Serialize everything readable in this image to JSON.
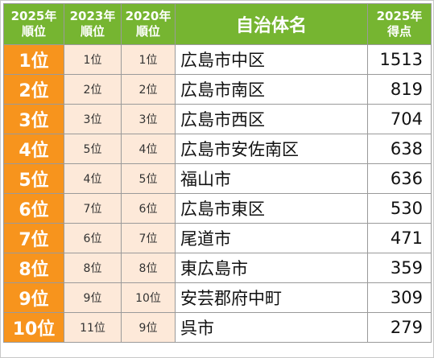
{
  "headers": {
    "rank_2025": [
      "2025年",
      "順位"
    ],
    "rank_2023": [
      "2023年",
      "順位"
    ],
    "rank_2020": [
      "2020年",
      "順位"
    ],
    "name": "自治体名",
    "score_2025": [
      "2025年",
      "得点"
    ]
  },
  "colors": {
    "header_green": "#76b531",
    "rank_orange": "#f7941d",
    "past_rank_peach": "#fde9d9"
  },
  "rows": [
    {
      "rank_2025": "1位",
      "rank_2023": "1位",
      "rank_2020": "1位",
      "name": "広島市中区",
      "score": "1513"
    },
    {
      "rank_2025": "2位",
      "rank_2023": "2位",
      "rank_2020": "2位",
      "name": "広島市南区",
      "score": "819"
    },
    {
      "rank_2025": "3位",
      "rank_2023": "3位",
      "rank_2020": "3位",
      "name": "広島市西区",
      "score": "704"
    },
    {
      "rank_2025": "4位",
      "rank_2023": "5位",
      "rank_2020": "4位",
      "name": "広島市安佐南区",
      "score": "638"
    },
    {
      "rank_2025": "5位",
      "rank_2023": "4位",
      "rank_2020": "5位",
      "name": "福山市",
      "score": "636"
    },
    {
      "rank_2025": "6位",
      "rank_2023": "7位",
      "rank_2020": "6位",
      "name": "広島市東区",
      "score": "530"
    },
    {
      "rank_2025": "7位",
      "rank_2023": "6位",
      "rank_2020": "7位",
      "name": "尾道市",
      "score": "471"
    },
    {
      "rank_2025": "8位",
      "rank_2023": "8位",
      "rank_2020": "8位",
      "name": "東広島市",
      "score": "359"
    },
    {
      "rank_2025": "9位",
      "rank_2023": "9位",
      "rank_2020": "10位",
      "name": "安芸郡府中町",
      "score": "309"
    },
    {
      "rank_2025": "10位",
      "rank_2023": "11位",
      "rank_2020": "9位",
      "name": "呉市",
      "score": "279"
    }
  ]
}
